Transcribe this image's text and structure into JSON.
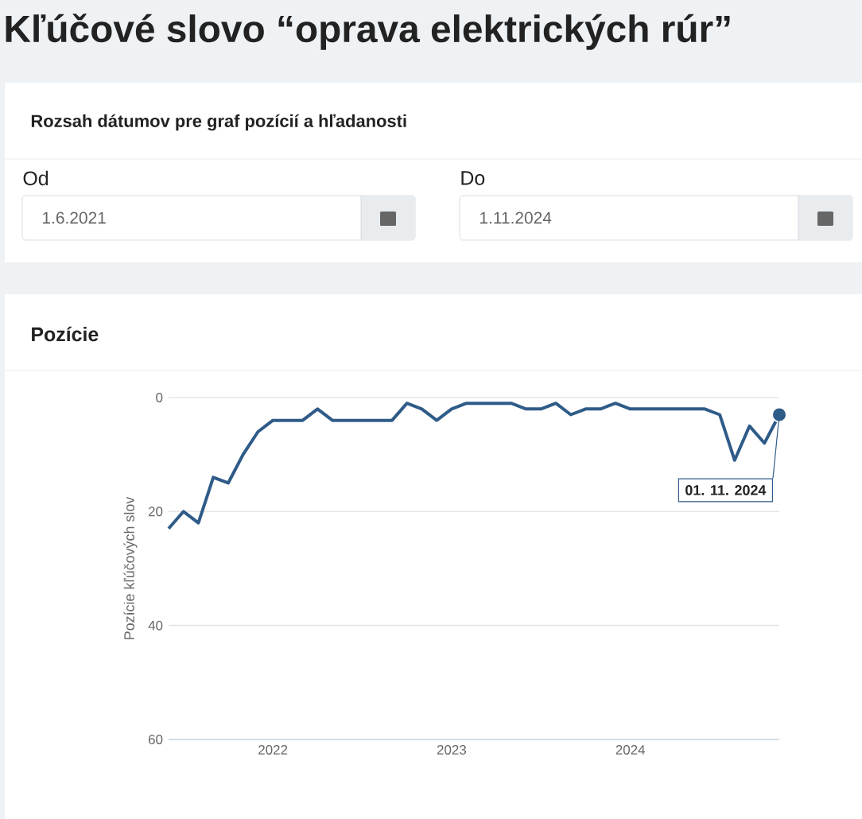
{
  "chart_data": {
    "type": "line",
    "title": "Kľúčové slovo “oprava elektrických rúr”",
    "subtitle": "Pozície",
    "ylabel": "Pozície kľúčových slov",
    "annotations": [
      "Rozsah dátumov pre graf pozícií a hľadanosti",
      "Od",
      "1.6.2021",
      "Do",
      "1.11.2024",
      {
        "text": "01. 11. 2024",
        "x": "2024-11",
        "y": 3
      }
    ],
    "x": [
      "2021-06",
      "2021-07",
      "2021-08",
      "2021-09",
      "2021-10",
      "2021-11",
      "2021-12",
      "2022-01",
      "2022-02",
      "2022-03",
      "2022-04",
      "2022-05",
      "2022-06",
      "2022-07",
      "2022-08",
      "2022-09",
      "2022-10",
      "2022-11",
      "2022-12",
      "2023-01",
      "2023-02",
      "2023-03",
      "2023-04",
      "2023-05",
      "2023-06",
      "2023-07",
      "2023-08",
      "2023-09",
      "2023-10",
      "2023-11",
      "2023-12",
      "2024-01",
      "2024-02",
      "2024-03",
      "2024-04",
      "2024-05",
      "2024-06",
      "2024-07",
      "2024-08",
      "2024-09",
      "2024-10",
      "2024-11"
    ],
    "series": [
      {
        "color": "#2f5b88",
        "values": [
          23,
          20,
          22,
          14,
          15,
          10,
          6,
          4,
          4,
          4,
          2,
          4,
          4,
          4,
          4,
          4,
          1,
          2,
          4,
          2,
          1,
          1,
          1,
          1,
          2,
          2,
          1,
          3,
          2,
          2,
          1,
          2,
          2,
          2,
          2,
          2,
          2,
          3,
          11,
          5,
          8,
          3
        ]
      }
    ],
    "xlim": [
      "2021-06",
      "2024-11"
    ],
    "xticks": [
      {
        "value": "2022-01",
        "label": "2022"
      },
      {
        "value": "2023-01",
        "label": "2023"
      },
      {
        "value": "2024-01",
        "label": "2024"
      }
    ],
    "ylim": [
      60,
      0
    ],
    "yticks": [
      0,
      20,
      40,
      60
    ],
    "grid": "y",
    "marker": "none",
    "line_style": "solid"
  }
}
